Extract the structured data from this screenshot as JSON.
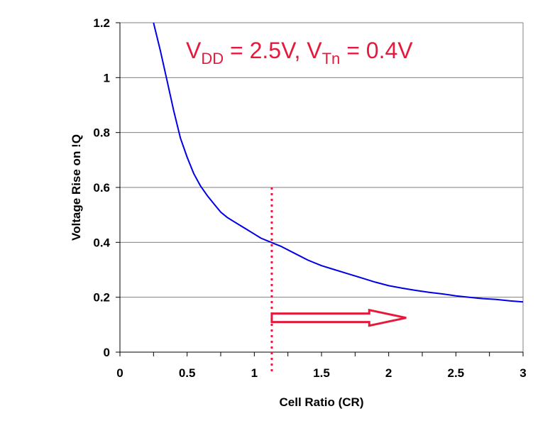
{
  "chart_data": {
    "type": "line",
    "xlabel": "Cell Ratio (CR)",
    "ylabel": "Voltage Rise on !Q",
    "xlim": [
      0,
      3
    ],
    "ylim": [
      0,
      1.2
    ],
    "x_ticks": [
      "0",
      "0.5",
      "1",
      "1.5",
      "2",
      "2.5",
      "3"
    ],
    "y_ticks": [
      "0",
      "0.2",
      "0.4",
      "0.6",
      "0.8",
      "1",
      "1.2"
    ],
    "grid": "horizontal",
    "series": [
      {
        "color": "#0000e6",
        "x": [
          0.25,
          0.3,
          0.35,
          0.4,
          0.45,
          0.5,
          0.55,
          0.6,
          0.65,
          0.7,
          0.75,
          0.8,
          0.85,
          0.9,
          0.95,
          1.0,
          1.05,
          1.1,
          1.15,
          1.2,
          1.3,
          1.4,
          1.5,
          1.6,
          1.7,
          1.8,
          1.9,
          2.0,
          2.1,
          2.2,
          2.3,
          2.4,
          2.5,
          2.6,
          2.7,
          2.8,
          2.9,
          3.0
        ],
        "y": [
          1.2,
          1.1,
          0.99,
          0.88,
          0.78,
          0.71,
          0.65,
          0.605,
          0.57,
          0.54,
          0.51,
          0.49,
          0.475,
          0.46,
          0.445,
          0.43,
          0.415,
          0.405,
          0.395,
          0.385,
          0.36,
          0.335,
          0.315,
          0.3,
          0.285,
          0.27,
          0.255,
          0.242,
          0.233,
          0.225,
          0.218,
          0.212,
          0.205,
          0.2,
          0.195,
          0.192,
          0.187,
          0.183
        ]
      }
    ],
    "annotations": {
      "condition_parts": [
        "V",
        "DD",
        " = 2.5V, V",
        "Tn",
        " = 0.4V"
      ],
      "marker_line": {
        "x": 1.13,
        "y_from": 0,
        "y_to": 0.6,
        "style": "dotted",
        "color": "#e6193c"
      },
      "arrow": {
        "x_from": 1.13,
        "x_to": 2.13,
        "y": 0.125,
        "style": "hollow",
        "color": "#e6193c",
        "direction": "right"
      }
    }
  }
}
